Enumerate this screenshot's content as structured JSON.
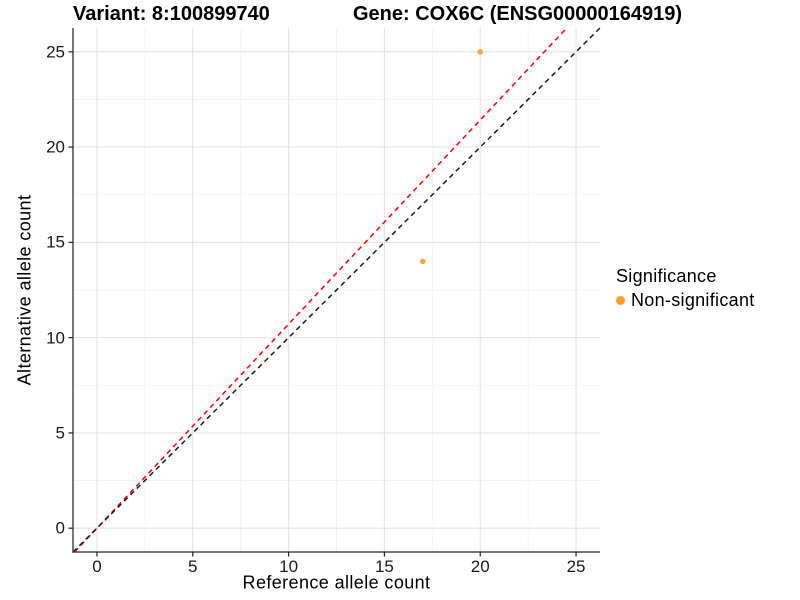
{
  "titles": {
    "left": "Variant: 8:100899740",
    "right": "Gene: COX6C (ENSG00000164919)"
  },
  "legend": {
    "title": "Significance",
    "items": [
      {
        "label": "Non-significant",
        "color": "#FF9E26"
      }
    ]
  },
  "chart_data": {
    "type": "scatter",
    "title_left": "Variant: 8:100899740",
    "title_right": "Gene: COX6C (ENSG00000164919)",
    "xlabel": "Reference allele count",
    "ylabel": "Alternative allele count",
    "xlim": [
      -1.25,
      26.25
    ],
    "ylim": [
      -1.25,
      26.25
    ],
    "x_ticks": [
      0,
      5,
      10,
      15,
      20,
      25
    ],
    "y_ticks": [
      0,
      5,
      10,
      15,
      20,
      25
    ],
    "x_minor_ticks": [
      2.5,
      7.5,
      12.5,
      17.5,
      22.5
    ],
    "y_minor_ticks": [
      2.5,
      7.5,
      12.5,
      17.5,
      22.5
    ],
    "grid": "major+minor",
    "legend_position": "right",
    "point_color": "#FAA43E",
    "points": [
      {
        "x": 20,
        "y": 25,
        "significance": "Non-significant"
      },
      {
        "x": 17,
        "y": 14,
        "significance": "Non-significant"
      }
    ],
    "reference_lines": [
      {
        "name": "fit-line",
        "slope": 1.071,
        "intercept": 0,
        "color": "#FF0000",
        "style": "dashed"
      },
      {
        "name": "identity-line",
        "slope": 1.0,
        "intercept": 0,
        "color": "#1A1A1A",
        "style": "dashed"
      }
    ]
  },
  "colors": {
    "background": "#FFFFFF",
    "grid_major": "#E3E3E3",
    "grid_minor": "#F1F1F1",
    "axis_line": "#4A4A4A",
    "tick_mark": "#222222",
    "text": "#000000"
  }
}
